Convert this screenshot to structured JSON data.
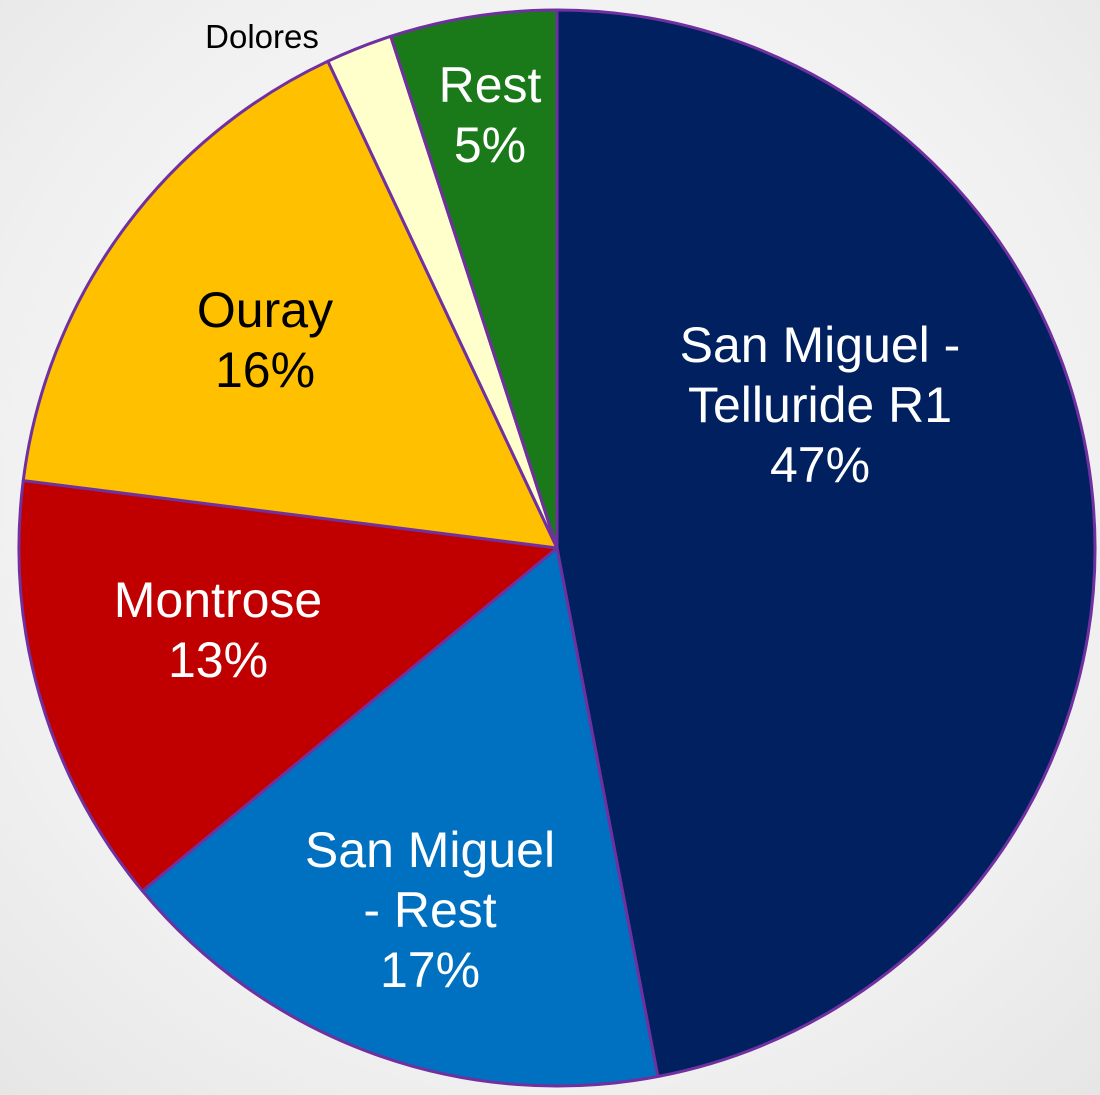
{
  "chart_data": {
    "type": "pie",
    "categories": [
      "San Miguel - Telluride R1",
      "San Miguel - Rest",
      "Montrose",
      "Ouray",
      "Dolores",
      "Rest"
    ],
    "values": [
      47,
      17,
      13,
      16,
      2,
      5
    ],
    "value_labels": [
      "47%",
      "17%",
      "13%",
      "16%",
      null,
      "5%"
    ],
    "colors": [
      "#002060",
      "#0070c0",
      "#c00000",
      "#ffc000",
      "#ffffcc",
      "#1a7a1a"
    ],
    "start_angle": 0,
    "direction": "clockwise"
  }
}
